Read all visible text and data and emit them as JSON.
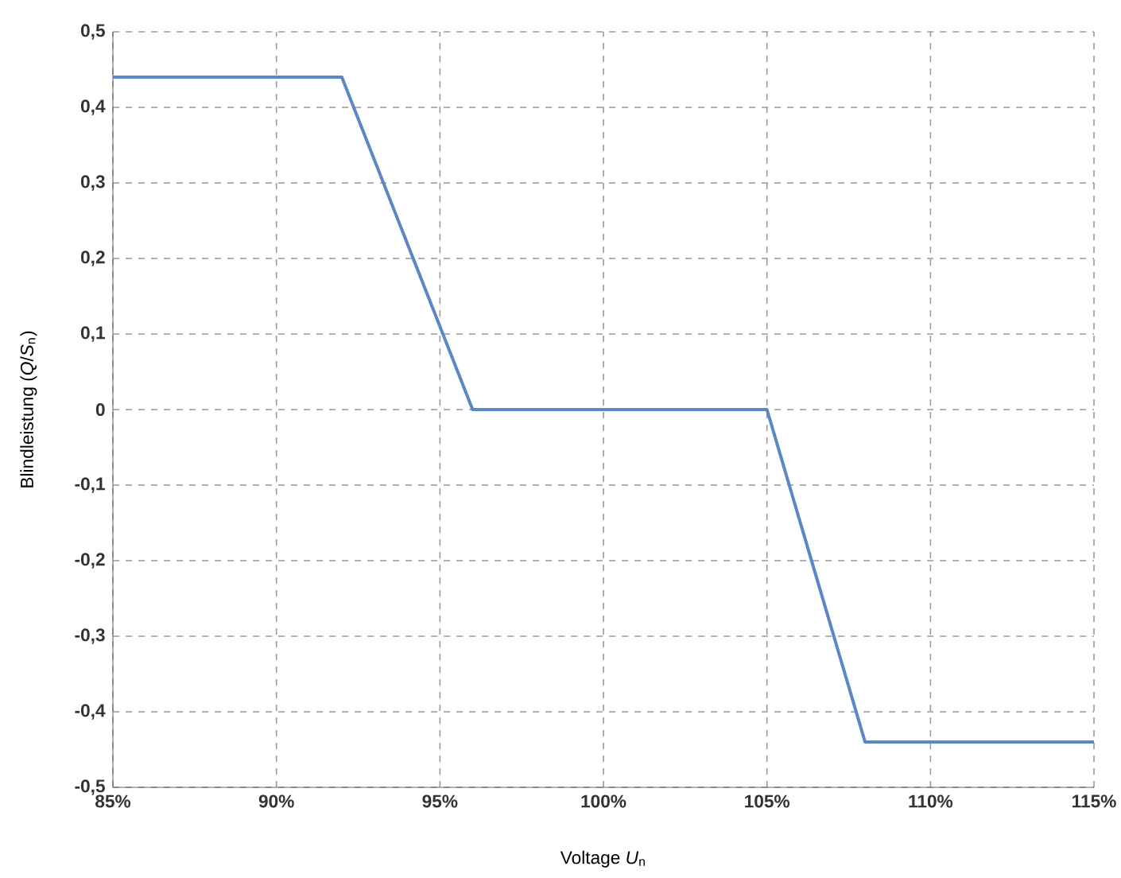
{
  "chart_data": {
    "type": "line",
    "xlabel": "Voltage *U*$_{n}$",
    "ylabel": "Blindleistung (*Q*/*S*$_{n}$)",
    "x": [
      85,
      92,
      96,
      105,
      108,
      115
    ],
    "series": [
      {
        "color": "#5b87c5",
        "values": [
          0.44,
          0.44,
          0,
          0,
          -0.44,
          -0.44
        ]
      }
    ],
    "xlim": [
      85,
      115
    ],
    "ylim": [
      -0.5,
      0.5
    ],
    "xticks": [
      {
        "value": 85,
        "label": "85%"
      },
      {
        "value": 90,
        "label": "90%"
      },
      {
        "value": 95,
        "label": "95%"
      },
      {
        "value": 100,
        "label": "100%"
      },
      {
        "value": 105,
        "label": "105%"
      },
      {
        "value": 110,
        "label": "110%"
      },
      {
        "value": 115,
        "label": "115%"
      }
    ],
    "yticks": [
      {
        "value": -0.5,
        "label": "-0,5"
      },
      {
        "value": -0.4,
        "label": "-0,4"
      },
      {
        "value": -0.3,
        "label": "-0,3"
      },
      {
        "value": -0.2,
        "label": "-0,2"
      },
      {
        "value": -0.1,
        "label": "-0,1"
      },
      {
        "value": 0,
        "label": "0"
      },
      {
        "value": 0.1,
        "label": "0,1"
      },
      {
        "value": 0.2,
        "label": "0,2"
      },
      {
        "value": 0.3,
        "label": "0,3"
      },
      {
        "value": 0.4,
        "label": "0,4"
      },
      {
        "value": 0.5,
        "label": "0,5"
      }
    ],
    "grid": true,
    "marker": "none",
    "line_style": "solid"
  }
}
